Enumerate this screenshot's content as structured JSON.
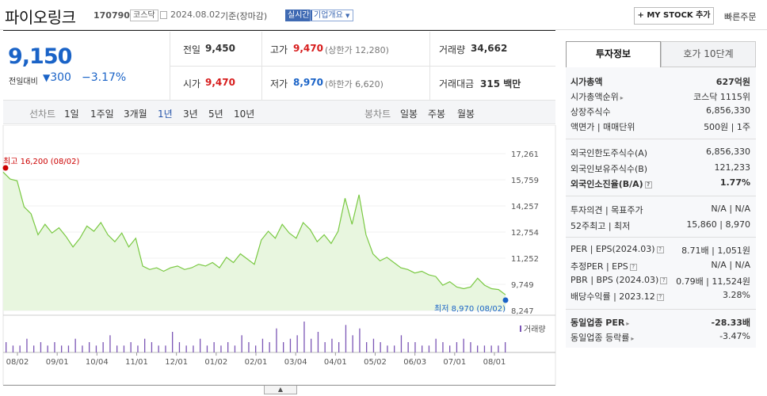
{
  "header": {
    "name": "파이오링크",
    "code": "170790",
    "market": "코스닥",
    "date": "2024.08.02",
    "basis": "기준(장마감)",
    "live": "실시간",
    "overview": "기업개요",
    "mystock": "+ MY STOCK 추가",
    "quick_order": "빠른주문"
  },
  "price": {
    "current": "9,150",
    "change_label": "전일대비",
    "change": "300",
    "change_pct": "−3.17%",
    "prev_label": "전일",
    "prev": "9,450",
    "high_label": "고가",
    "high": "9,470",
    "upper_limit": "(상한가 12,280)",
    "volume_label": "거래량",
    "volume": "34,662",
    "open_label": "시가",
    "open": "9,470",
    "low_label": "저가",
    "low": "8,970",
    "lower_limit": "(하한가 6,620)",
    "amount_label": "거래대금",
    "amount": "315 백만"
  },
  "periods": {
    "line_label": "선차트",
    "items": [
      "1일",
      "1주일",
      "3개월",
      "1년",
      "3년",
      "5년",
      "10년"
    ],
    "active": "1년",
    "candle_label": "봉차트",
    "candle_items": [
      "일봉",
      "주봉",
      "월봉"
    ]
  },
  "chart_data": {
    "type": "area",
    "y_ticks": [
      "17,261",
      "15,759",
      "14,257",
      "12,754",
      "11,252",
      "9,749",
      "8,247"
    ],
    "ylim": [
      8247,
      17261
    ],
    "x_ticks": [
      "08/02",
      "09/01",
      "10/04",
      "11/01",
      "12/01",
      "01/02",
      "02/01",
      "03/04",
      "04/01",
      "05/02",
      "06/03",
      "07/01",
      "08/01"
    ],
    "max_label": "최고 16,200 (08/02)",
    "min_label": "최저 8,970 (08/02)",
    "volume_label": "거래량",
    "series": [
      {
        "values": [
          16200,
          15800,
          15700,
          14200,
          13800,
          12600,
          13200,
          12700,
          13000,
          12500,
          11900,
          12400,
          13100,
          12800,
          13300,
          12600,
          12200,
          12700,
          11900,
          12400,
          10800,
          10600,
          10700,
          10500,
          10700,
          10800,
          10600,
          10700,
          10900,
          10800,
          11000,
          10700,
          11300,
          11000,
          11500,
          11200,
          10900,
          12300,
          12800,
          12400,
          13200,
          12700,
          12400,
          13300,
          12900,
          12200,
          12600,
          12100,
          12800,
          14700,
          13200,
          14900,
          12600,
          11500,
          11100,
          11300,
          11000,
          10700,
          10600,
          10400,
          10500,
          10300,
          10200,
          9700,
          9900,
          9600,
          9500,
          9600,
          10100,
          9700,
          9500,
          9450,
          9150
        ]
      }
    ],
    "volume": [
      3,
      2,
      2,
      4,
      2,
      3,
      2,
      3,
      2,
      2,
      4,
      2,
      3,
      2,
      3,
      5,
      2,
      2,
      3,
      2,
      4,
      3,
      2,
      2,
      6,
      3,
      2,
      2,
      4,
      2,
      3,
      2,
      3,
      2,
      5,
      3,
      2,
      4,
      3,
      7,
      3,
      4,
      5,
      9,
      4,
      6,
      3,
      4,
      3,
      8,
      5,
      7,
      3,
      4,
      3,
      2,
      2,
      5,
      3,
      3,
      2,
      2,
      4,
      3,
      2,
      3,
      4,
      3,
      2,
      2,
      2,
      2,
      3
    ],
    "colors": {
      "line": "#7ac943",
      "fill": "#e8f6df",
      "max": "#cc0000",
      "min": "#1a63c7",
      "volume": "#7b55b5"
    }
  },
  "info": {
    "tab_invest": "투자정보",
    "tab_hoga": "호가 10단계",
    "market_cap_label": "시가총액",
    "market_cap": "627억원",
    "rank_label": "시가총액순위",
    "rank": "코스닥 1115위",
    "shares_label": "상장주식수",
    "shares": "6,856,330",
    "par_label": "액면가 | 매매단위",
    "par": "500원 | 1주",
    "foreign_limit_label": "외국인한도주식수(A)",
    "foreign_limit": "6,856,330",
    "foreign_hold_label": "외국인보유주식수(B)",
    "foreign_hold": "121,233",
    "foreign_rate_label": "외국인소진율(B/A)",
    "foreign_rate": "1.77%",
    "opinion_label": "투자의견 | 목표주가",
    "opinion": "N/A | N/A",
    "w52_label": "52주최고 | 최저",
    "w52": "15,860 | 8,970",
    "per_label": "PER | EPS(2024.03)",
    "per": "8.71배 | 1,051원",
    "est_label": "추정PER | EPS",
    "est": "N/A | N/A",
    "pbr_label": "PBR | BPS (2024.03)",
    "pbr": "0.79배 | 11,524원",
    "div_label": "배당수익률 | 2023.12",
    "div": "3.28%",
    "ind_per_label": "동일업종 PER",
    "ind_per": "-28.33배",
    "ind_rate_label": "동일업종 등락률",
    "ind_rate": "-3.47%"
  }
}
